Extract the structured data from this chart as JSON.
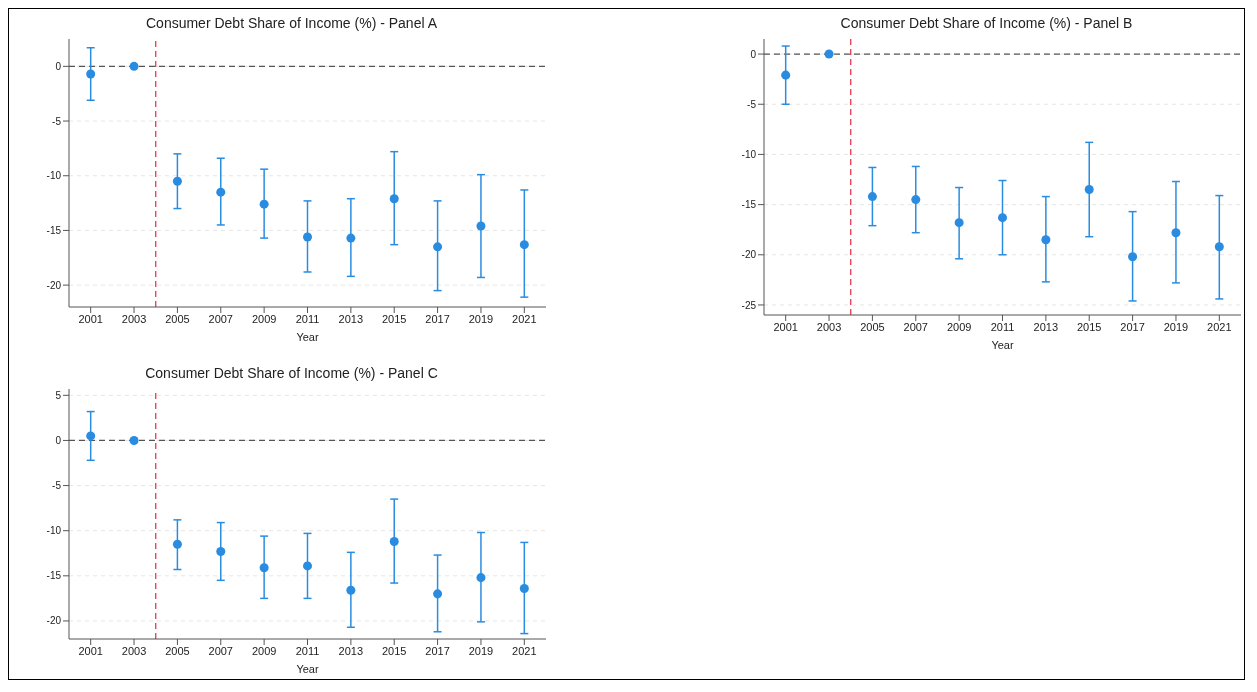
{
  "chart_data": [
    {
      "type": "scatter",
      "title": "Consumer Debt Share of Income (%) - Panel A",
      "xlabel": "Year",
      "x": [
        2001,
        2003,
        2005,
        2007,
        2009,
        2011,
        2013,
        2015,
        2017,
        2019,
        2021
      ],
      "xlim": [
        2000,
        2022
      ],
      "xticks": [
        2001,
        2003,
        2005,
        2007,
        2009,
        2011,
        2013,
        2015,
        2017,
        2019,
        2021
      ],
      "ylim": [
        -22,
        2.5
      ],
      "yticks": [
        -20,
        -15,
        -10,
        -5,
        0
      ],
      "grid": "y",
      "marker": "circle",
      "legend": false,
      "series": [
        {
          "color": "#2a8ce0",
          "values": [
            -0.7,
            0,
            -10.5,
            -11.5,
            -12.6,
            -15.6,
            -15.7,
            -12.1,
            -16.5,
            -14.6,
            -16.3
          ],
          "errors": [
            [
              -3.1,
              1.7
            ],
            null,
            [
              -13,
              -8
            ],
            [
              -14.5,
              -8.4
            ],
            [
              -15.7,
              -9.4
            ],
            [
              -18.8,
              -12.3
            ],
            [
              -19.2,
              -12.1
            ],
            [
              -16.3,
              -7.8
            ],
            [
              -20.5,
              -12.3
            ],
            [
              -19.3,
              -9.9
            ],
            [
              -21.1,
              -11.3
            ]
          ]
        }
      ],
      "ref_lines": [
        {
          "axis": "x",
          "value": 2004,
          "color": "#e8384f",
          "line_style": "dashed"
        },
        {
          "axis": "y",
          "value": 0,
          "color": "#555555",
          "line_style": "dashed"
        }
      ]
    },
    {
      "type": "scatter",
      "title": "Consumer Debt Share of Income (%) - Panel B",
      "xlabel": "Year",
      "x": [
        2001,
        2003,
        2005,
        2007,
        2009,
        2011,
        2013,
        2015,
        2017,
        2019,
        2021
      ],
      "xlim": [
        2000,
        2022
      ],
      "xticks": [
        2001,
        2003,
        2005,
        2007,
        2009,
        2011,
        2013,
        2015,
        2017,
        2019,
        2021
      ],
      "ylim": [
        -26,
        1.5
      ],
      "yticks": [
        -25,
        -20,
        -15,
        -10,
        -5,
        0
      ],
      "grid": "y",
      "marker": "circle",
      "legend": false,
      "series": [
        {
          "color": "#2a8ce0",
          "values": [
            -2.1,
            0,
            -14.2,
            -14.5,
            -16.8,
            -16.3,
            -18.5,
            -13.5,
            -20.2,
            -17.8,
            -19.2
          ],
          "errors": [
            [
              -5,
              0.8
            ],
            null,
            [
              -17.1,
              -11.3
            ],
            [
              -17.8,
              -11.2
            ],
            [
              -20.4,
              -13.3
            ],
            [
              -20,
              -12.6
            ],
            [
              -22.7,
              -14.2
            ],
            [
              -18.2,
              -8.8
            ],
            [
              -24.6,
              -15.7
            ],
            [
              -22.8,
              -12.7
            ],
            [
              -24.4,
              -14.1
            ]
          ]
        }
      ],
      "ref_lines": [
        {
          "axis": "x",
          "value": 2004,
          "color": "#e8384f",
          "line_style": "dashed"
        },
        {
          "axis": "y",
          "value": 0,
          "color": "#555555",
          "line_style": "dashed"
        }
      ]
    },
    {
      "type": "scatter",
      "title": "Consumer Debt Share of Income (%) - Panel C",
      "xlabel": "Year",
      "x": [
        2001,
        2003,
        2005,
        2007,
        2009,
        2011,
        2013,
        2015,
        2017,
        2019,
        2021
      ],
      "xlim": [
        2000,
        2022
      ],
      "xticks": [
        2001,
        2003,
        2005,
        2007,
        2009,
        2011,
        2013,
        2015,
        2017,
        2019,
        2021
      ],
      "ylim": [
        -22,
        5.7
      ],
      "yticks": [
        -20,
        -15,
        -10,
        -5,
        0,
        5
      ],
      "grid": "y",
      "marker": "circle",
      "legend": false,
      "series": [
        {
          "color": "#2a8ce0",
          "values": [
            0.5,
            0,
            -11.5,
            -12.3,
            -14.1,
            -13.9,
            -16.6,
            -11.2,
            -17,
            -15.2,
            -16.4
          ],
          "errors": [
            [
              -2.2,
              3.2
            ],
            null,
            [
              -14.3,
              -8.8
            ],
            [
              -15.5,
              -9.1
            ],
            [
              -17.5,
              -10.6
            ],
            [
              -17.5,
              -10.3
            ],
            [
              -20.7,
              -12.4
            ],
            [
              -15.8,
              -6.5
            ],
            [
              -21.2,
              -12.7
            ],
            [
              -20.1,
              -10.2
            ],
            [
              -21.4,
              -11.3
            ]
          ]
        }
      ],
      "ref_lines": [
        {
          "axis": "x",
          "value": 2004,
          "color": "#e8384f",
          "line_style": "dashed"
        },
        {
          "axis": "y",
          "value": 0,
          "color": "#555555",
          "line_style": "dashed"
        }
      ]
    }
  ]
}
